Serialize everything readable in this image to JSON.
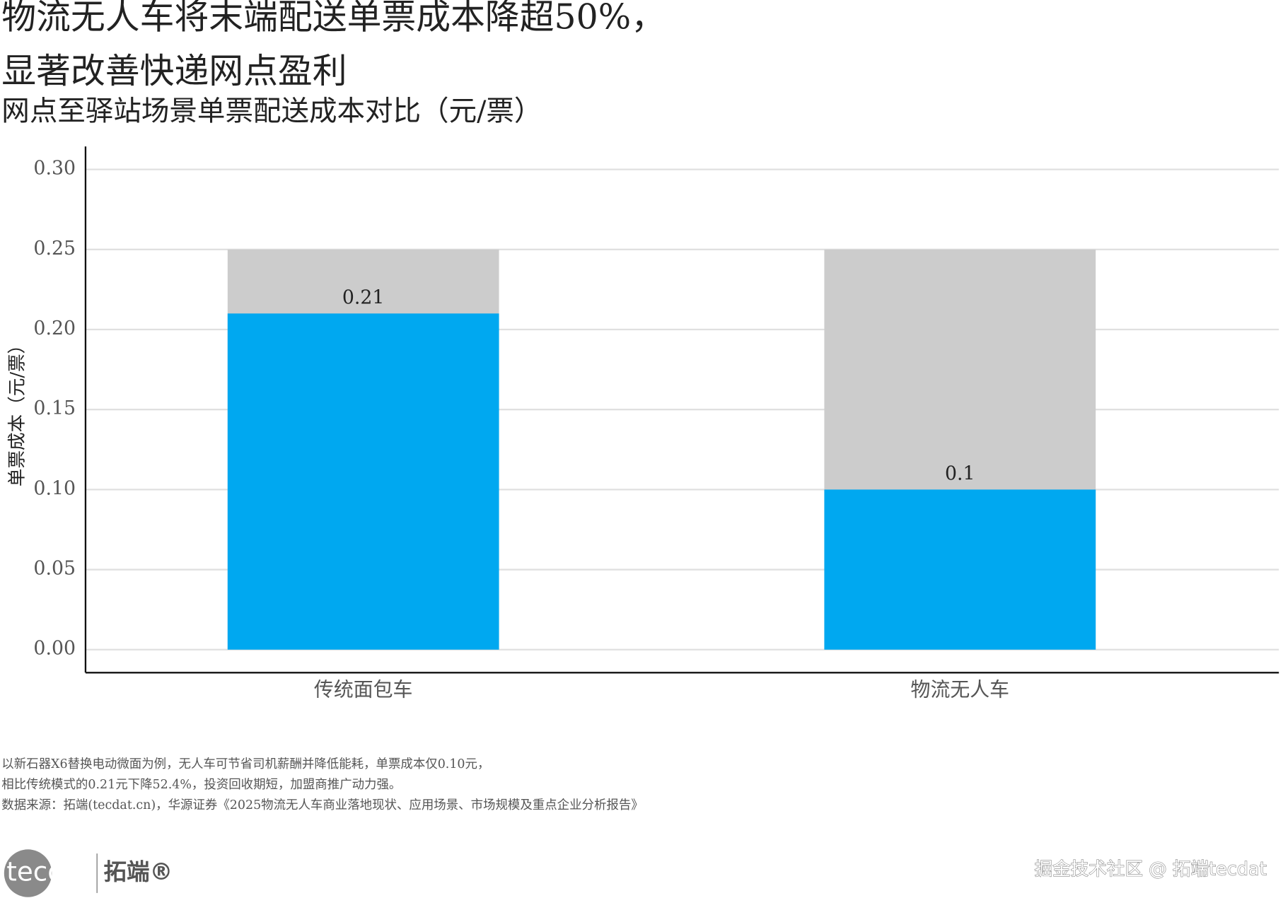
{
  "chart_data": {
    "type": "bar",
    "title": [
      "物流无人车将末端配送单票成本降超50%，",
      "显著改善快递网点盈利"
    ],
    "subtitle": "网点至驿站场景单票配送成本对比（元/票）",
    "y_label": "单票成本（元/票）",
    "categories": [
      "传统面包车",
      "物流无人车"
    ],
    "values": [
      0.21,
      0.1
    ],
    "color": "#00a8f0",
    "background_values": [
      0.25,
      0.25
    ],
    "background_color": "#cccccc",
    "ylim": [
      0,
      0.3
    ],
    "yticks": [
      {
        "value": 0,
        "label": "0.00"
      },
      {
        "value": 0.05,
        "label": "0.05"
      },
      {
        "value": 0.1,
        "label": "0.10"
      },
      {
        "value": 0.15,
        "label": "0.15"
      },
      {
        "value": 0.2,
        "label": "0.20"
      },
      {
        "value": 0.25,
        "label": "0.25"
      },
      {
        "value": 0.3,
        "label": "0.30"
      }
    ],
    "grid": true,
    "notes": [
      "以新石器X6替换电动微面为例，无人车可节省司机薪酬并降低能耗，单票成本仅0.10元，",
      "相比传统模式的0.21元下降52.4%，投资回收期短，加盟商推广动力强。",
      "数据来源：拓端(tecdat.cn)，华源证券《2025物流无人车商业落地现状、应用场景、市场规模及重点企业分析报告》"
    ]
  },
  "branding": {
    "logo": "tecdat",
    "logo_cn": "拓端®",
    "watermark": "掘金技术社区 @ 拓端tecdat"
  }
}
